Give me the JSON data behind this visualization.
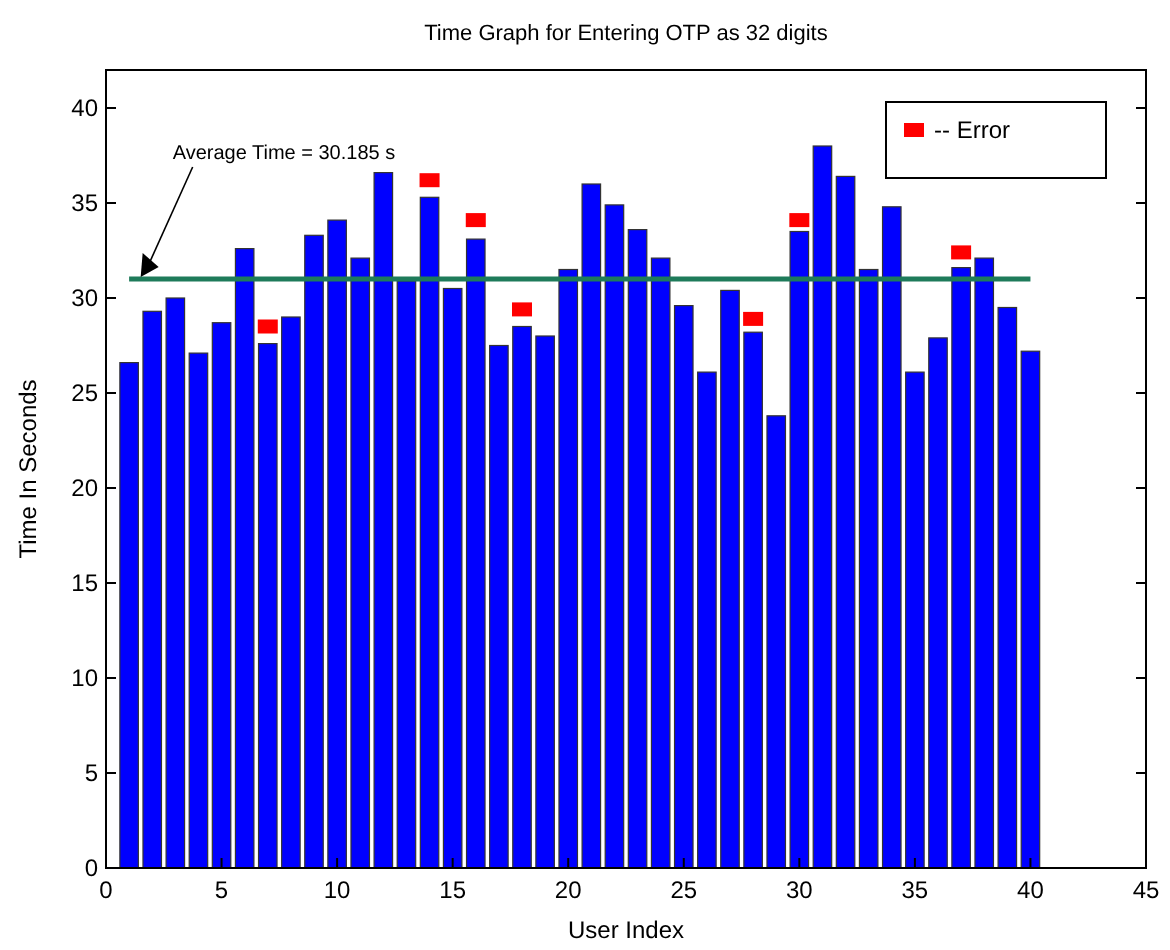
{
  "chart_data": {
    "type": "bar",
    "title": "Time Graph for Entering OTP as 32 digits",
    "xlabel": "User Index",
    "ylabel": "Time In Seconds",
    "x": [
      1,
      2,
      3,
      4,
      5,
      6,
      7,
      8,
      9,
      10,
      11,
      12,
      13,
      14,
      15,
      16,
      17,
      18,
      19,
      20,
      21,
      22,
      23,
      24,
      25,
      26,
      27,
      28,
      29,
      30,
      31,
      32,
      33,
      34,
      35,
      36,
      37,
      38,
      39,
      40
    ],
    "series": [
      {
        "color": "#0000ff",
        "values": [
          26.6,
          29.3,
          30.0,
          27.1,
          28.7,
          32.6,
          27.6,
          29.0,
          33.3,
          34.1,
          32.1,
          36.6,
          30.9,
          35.3,
          30.5,
          33.1,
          27.5,
          28.5,
          28.0,
          31.5,
          36.0,
          34.9,
          33.6,
          32.1,
          29.6,
          26.1,
          30.4,
          28.2,
          23.8,
          33.5,
          38.0,
          36.4,
          31.5,
          34.8,
          26.1,
          27.9,
          31.6,
          32.1,
          29.5,
          27.2
        ]
      },
      {
        "type": "scatter",
        "name": "-- Error",
        "color": "#ff0000",
        "marker": "square",
        "x": [
          7,
          14,
          16,
          18,
          28,
          30,
          37
        ],
        "values": [
          28.5,
          36.2,
          34.1,
          29.4,
          28.9,
          34.1,
          32.4
        ]
      }
    ],
    "ref_lines": [
      {
        "axis": "y",
        "value": 31,
        "color": "#1e7b5a"
      }
    ],
    "annotations": [
      {
        "text": "Average Time = 30.185 s",
        "x": 1.5,
        "y": 31
      }
    ],
    "xlim": [
      0,
      45
    ],
    "xticks": [
      0,
      5,
      10,
      15,
      20,
      25,
      30,
      35,
      40,
      45
    ],
    "ylim": [
      0,
      42
    ],
    "yticks": [
      0,
      5,
      10,
      15,
      20,
      25,
      30,
      35,
      40
    ],
    "legend": "top right",
    "grid": false
  }
}
